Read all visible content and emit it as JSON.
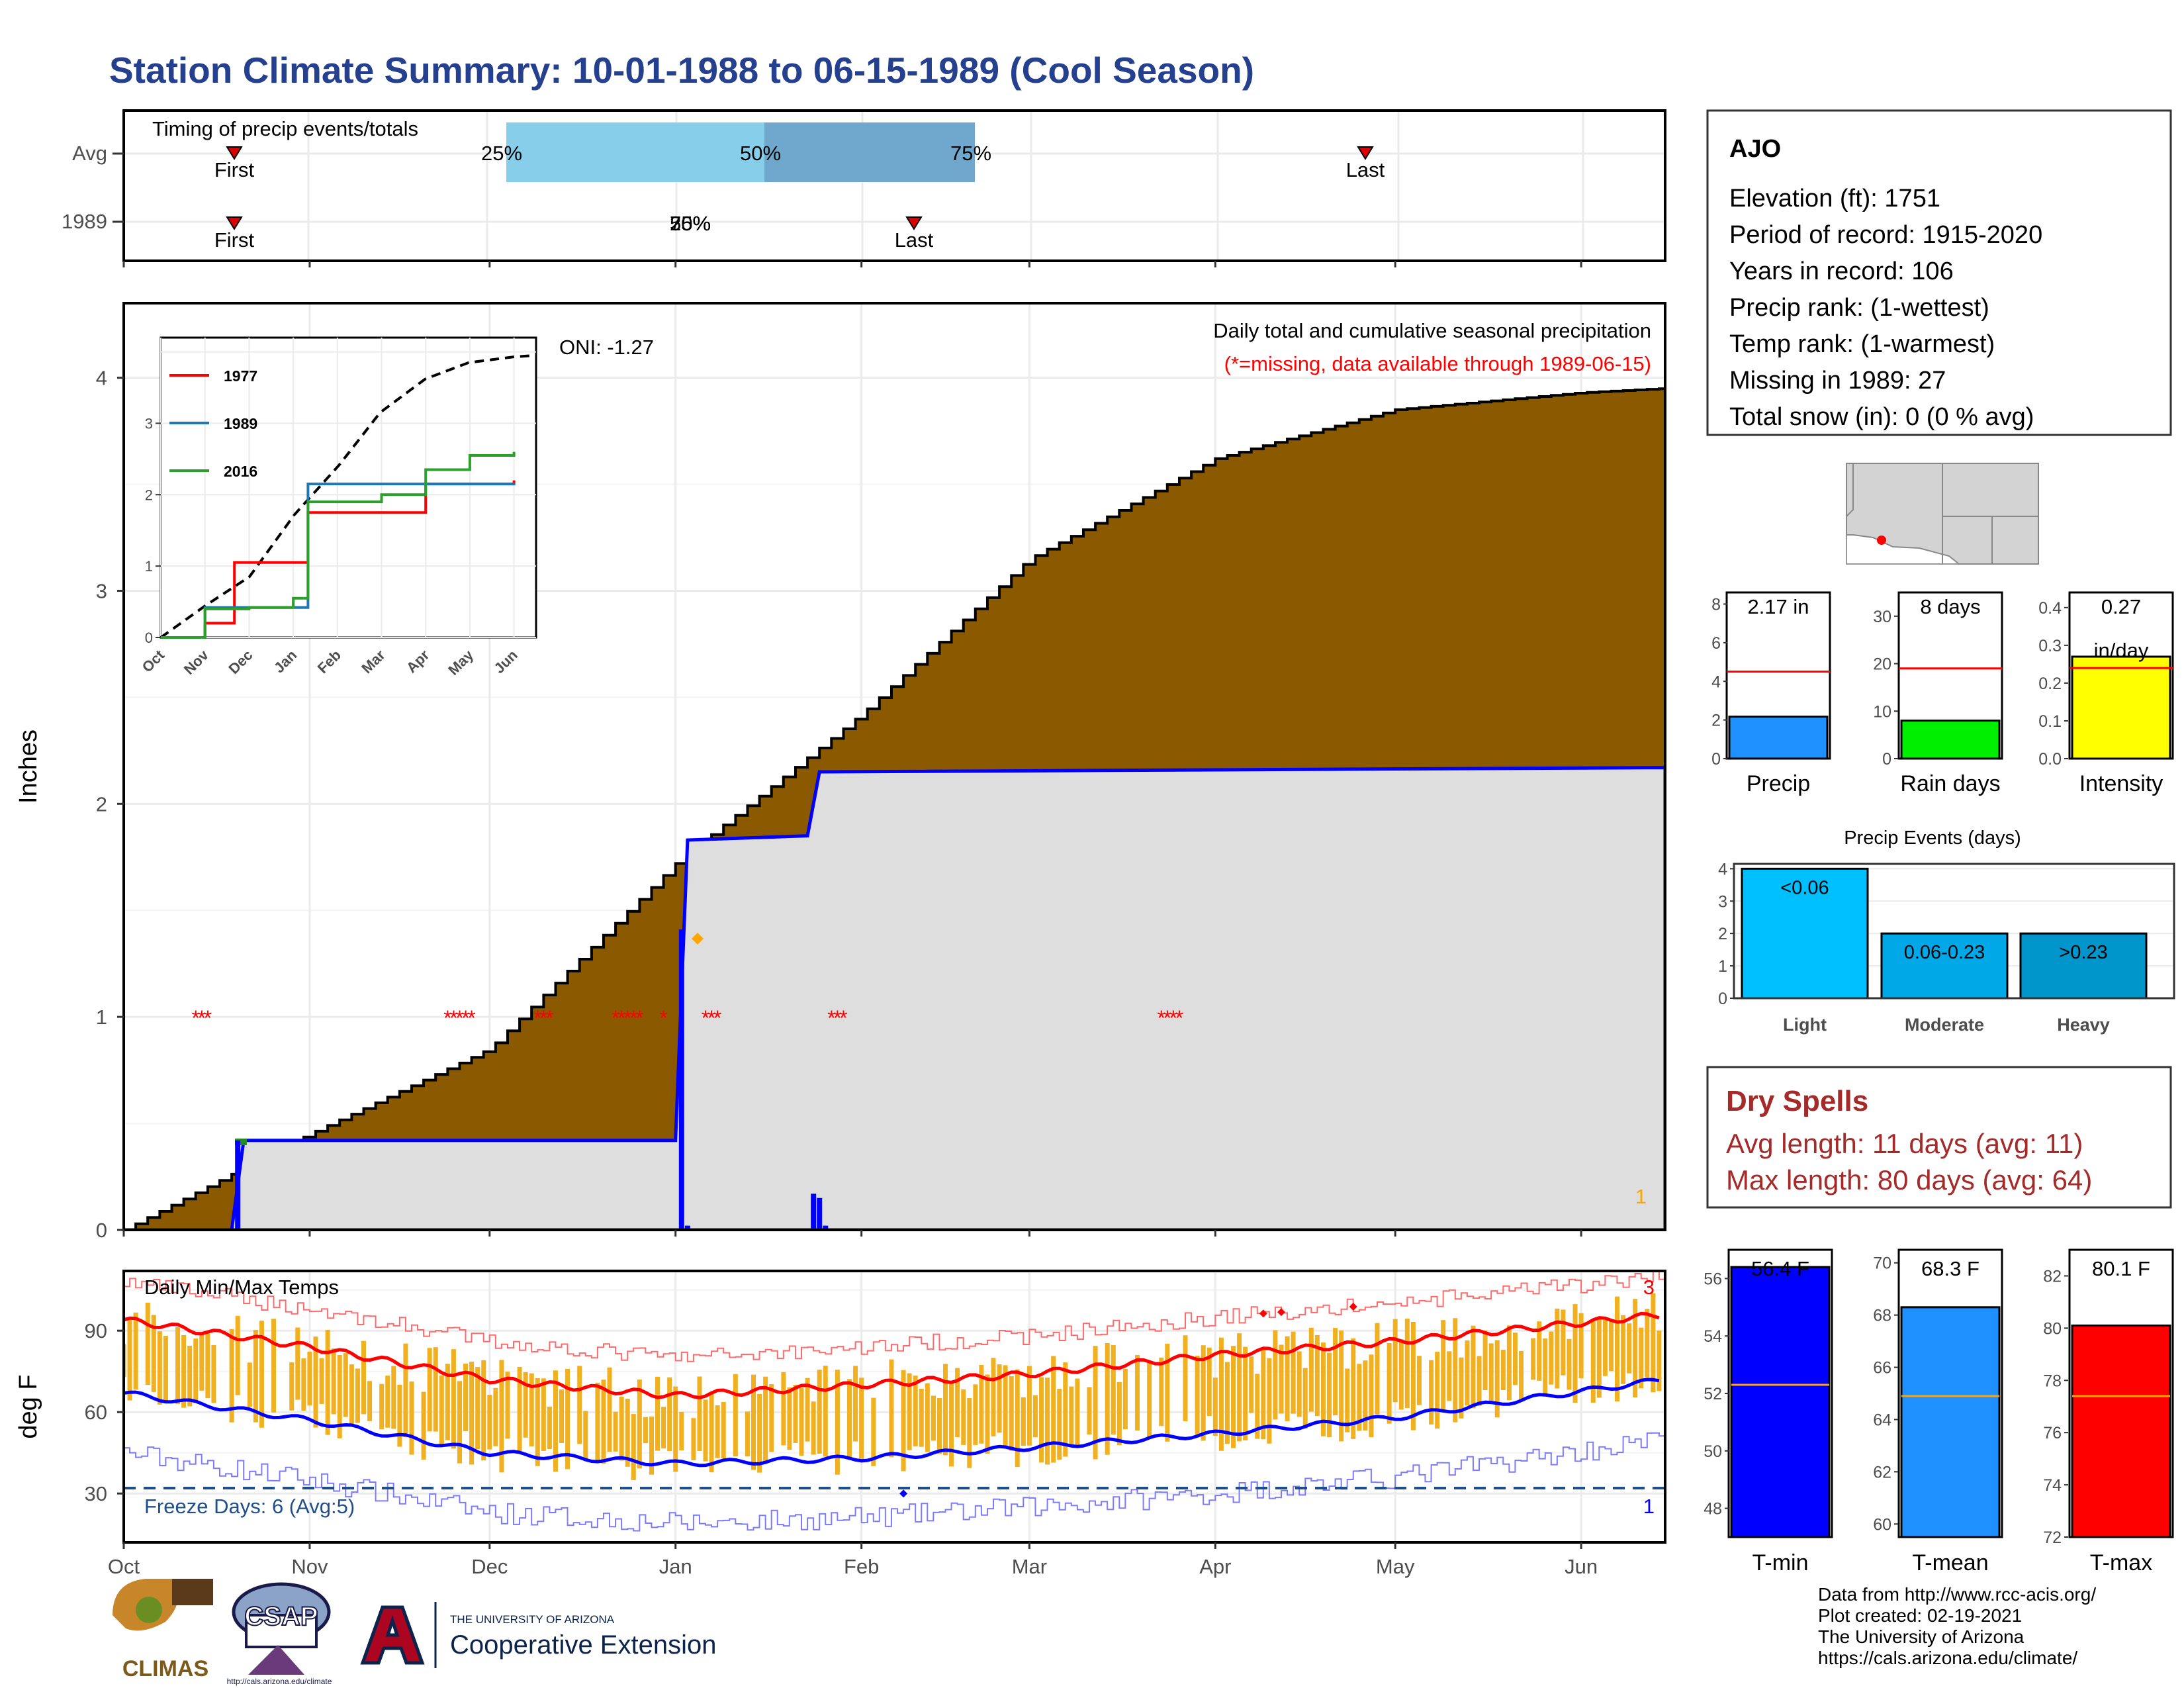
{
  "title": "Station Climate Summary: 10-01-1988 to 06-15-1989 (Cool Season)",
  "timing": {
    "label": "Timing of precip events/totals",
    "rows": [
      "Avg",
      "1989"
    ],
    "avg_first": "First",
    "avg_last": "Last",
    "p25": "25%",
    "p50": "50%",
    "p75": "75%",
    "y89_first": "First",
    "y89_last": "Last",
    "y89_overlap": "25%",
    "y89_overlap2": "50%",
    "y89_overlap3": "75%"
  },
  "station": {
    "name": "AJO",
    "lines": [
      "Elevation (ft): 1751",
      "Period of record: 1915-2020",
      "Years in record: 106",
      "Precip rank:  (1-wettest)",
      "Temp rank:  (1-warmest)",
      "Missing in 1989: 27",
      "Total snow (in): 0 (0 % avg)"
    ]
  },
  "precip_panel": {
    "ylabel": "Inches",
    "oni": "ONI: -1.27",
    "subtitle": "Daily total and cumulative seasonal precipitation",
    "missing_note": "(*=missing, data available through 1989-06-15)",
    "corner_count": "1",
    "months": [
      "Oct",
      "Nov",
      "Dec",
      "Jan",
      "Feb",
      "Mar",
      "Apr",
      "May",
      "Jun"
    ],
    "yticks": [
      "0",
      "1",
      "2",
      "3",
      "4"
    ]
  },
  "inset": {
    "legend": [
      "1977",
      "1989",
      "2016"
    ],
    "months": [
      "Oct",
      "Nov",
      "Dec",
      "Jan",
      "Feb",
      "Mar",
      "Apr",
      "May",
      "Jun"
    ],
    "yticks": [
      "0",
      "1",
      "2",
      "3"
    ]
  },
  "temp_panel": {
    "ylabel": "deg F",
    "label": "Daily Min/Max Temps",
    "freeze": "Freeze Days: 6 (Avg:5)",
    "top_count": "3",
    "bottom_count": "1",
    "yticks": [
      "30",
      "60",
      "90"
    ],
    "months": [
      "Oct",
      "Nov",
      "Dec",
      "Jan",
      "Feb",
      "Mar",
      "Apr",
      "May",
      "Jun"
    ]
  },
  "small_bars": {
    "precip": {
      "value": "2.17 in",
      "label": "Precip",
      "yticks": [
        "0",
        "2",
        "4",
        "6",
        "8"
      ],
      "color": "#1e90ff"
    },
    "rain_days": {
      "value": "8 days",
      "label": "Rain days",
      "yticks": [
        "0",
        "10",
        "20",
        "30"
      ],
      "color": "#00ee00"
    },
    "intensity": {
      "value": "0.27",
      "unit": "in/day",
      "label": "Intensity",
      "yticks": [
        "0.0",
        "0.1",
        "0.2",
        "0.3",
        "0.4"
      ],
      "color": "#ffff00"
    }
  },
  "events": {
    "title": "Precip Events (days)",
    "yticks": [
      "0",
      "1",
      "2",
      "3",
      "4"
    ],
    "bars": [
      {
        "label": "<0.06",
        "cat": "Light"
      },
      {
        "label": "0.06-0.23",
        "cat": "Moderate"
      },
      {
        "label": ">0.23",
        "cat": "Heavy"
      }
    ]
  },
  "dry": {
    "title": "Dry Spells",
    "avg": "Avg length: 11 days (avg: 11)",
    "max": "Max length: 80 days (avg: 64)"
  },
  "temps": {
    "tmin": {
      "value": "56.4 F",
      "label": "T-min",
      "yticks": [
        "48",
        "50",
        "52",
        "54",
        "56"
      ],
      "color": "#0000ff"
    },
    "tmean": {
      "value": "68.3 F",
      "label": "T-mean",
      "yticks": [
        "60",
        "62",
        "64",
        "66",
        "68",
        "70"
      ],
      "color": "#1e90ff"
    },
    "tmax": {
      "value": "80.1 F",
      "label": "T-max",
      "yticks": [
        "72",
        "74",
        "76",
        "78",
        "80",
        "82"
      ],
      "color": "#ff0000"
    }
  },
  "footer": {
    "lines": [
      "Data from http://www.rcc-acis.org/",
      "Plot created: 02-19-2021",
      "The University of Arizona",
      "https://cals.arizona.edu/climate/"
    ],
    "climas": "CLIMAS",
    "csap": "CSAP",
    "csap_url": "http://cals.arizona.edu/climate",
    "ua_small": "THE UNIVERSITY OF ARIZONA",
    "ua_big": "Cooperative Extension"
  },
  "chart_data": [
    {
      "type": "area",
      "title": "Daily total and cumulative seasonal precipitation",
      "ylabel": "Inches",
      "ylim": [
        0,
        4.35
      ],
      "x_range": [
        "1988-10-01",
        "1989-06-15"
      ],
      "series": [
        {
          "name": "average cumulative",
          "x": [
            "1988-10-01",
            "1988-11-01",
            "1988-12-01",
            "1989-01-01",
            "1989-02-01",
            "1989-03-01",
            "1989-04-01",
            "1989-05-01",
            "1989-06-01",
            "1989-06-15"
          ],
          "values": [
            0,
            0.45,
            0.85,
            1.72,
            2.42,
            3.15,
            3.62,
            3.85,
            3.93,
            3.95
          ]
        },
        {
          "name": "1989",
          "x": [
            "1988-10-01",
            "1988-10-19",
            "1988-10-21",
            "1989-01-01",
            "1989-01-03",
            "1989-01-23",
            "1989-01-25",
            "1989-06-15"
          ],
          "values": [
            0,
            0,
            0.42,
            0.42,
            1.83,
            1.85,
            2.15,
            2.17
          ]
        }
      ],
      "missing_days": [
        "1988-10-13",
        "1988-10-14",
        "1988-10-15",
        "1988-11-24",
        "1988-11-25",
        "1988-11-26",
        "1988-11-27",
        "1988-11-28",
        "1988-12-09",
        "1988-12-10",
        "1988-12-11",
        "1988-12-22",
        "1988-12-23",
        "1988-12-24",
        "1988-12-25",
        "1988-12-26",
        "1988-12-30",
        "1989-01-06",
        "1989-01-07",
        "1989-01-08",
        "1989-01-27",
        "1989-01-28",
        "1989-01-29",
        "1989-03-23",
        "1989-03-24",
        "1989-03-25",
        "1989-03-26"
      ]
    },
    {
      "type": "line",
      "title": "",
      "ylim": [
        0,
        4.2
      ],
      "legend": "top-left",
      "series": [
        {
          "name": "1977",
          "x": [
            "Oct",
            "Nov",
            "Nov 20",
            "Jan",
            "Jan 10",
            "Apr",
            "May",
            "Jun"
          ],
          "values": [
            0,
            0.2,
            1.05,
            1.05,
            1.75,
            2.15,
            2.15,
            2.2
          ]
        },
        {
          "name": "1989",
          "x": [
            "Oct",
            "Nov",
            "Jan",
            "Jan 10",
            "May",
            "Jun"
          ],
          "values": [
            0,
            0.42,
            0.42,
            2.15,
            2.15,
            2.17
          ]
        },
        {
          "name": "2016",
          "x": [
            "Oct",
            "Nov",
            "Dec",
            "Jan",
            "Jan 10",
            "Mar",
            "Apr",
            "May",
            "Jun"
          ],
          "values": [
            0,
            0.4,
            0.42,
            0.55,
            1.9,
            2.0,
            2.35,
            2.55,
            2.6
          ]
        }
      ]
    },
    {
      "type": "bar",
      "title": "Daily Min/Max Temps",
      "ylabel": "deg F",
      "ylim": [
        12,
        112
      ],
      "series": [
        {
          "name": "avg max",
          "x": [
            "Oct",
            "Nov",
            "Dec",
            "Jan",
            "Feb",
            "Mar",
            "Apr",
            "May",
            "Jun 15"
          ],
          "values": [
            94,
            84,
            72,
            66,
            70,
            74,
            81,
            86,
            96
          ]
        },
        {
          "name": "avg min",
          "x": [
            "Oct",
            "Nov",
            "Dec",
            "Jan",
            "Feb",
            "Mar",
            "Apr",
            "May",
            "Jun 15"
          ],
          "values": [
            67,
            57,
            45,
            41,
            43,
            47,
            52,
            58,
            72
          ]
        }
      ],
      "freeze_line": 32
    },
    {
      "type": "bar",
      "categories": [
        "Light",
        "Moderate",
        "Heavy"
      ],
      "values": [
        4,
        2,
        2
      ],
      "title": "Precip Events (days)",
      "ylim": [
        0,
        4
      ]
    },
    {
      "type": "bar",
      "categories": [
        "Precip",
        "Rain days",
        "Intensity"
      ],
      "values": [
        2.17,
        8,
        0.27
      ],
      "averages": [
        4.5,
        19,
        0.24
      ]
    },
    {
      "type": "bar",
      "categories": [
        "T-min",
        "T-mean",
        "T-max"
      ],
      "values": [
        56.4,
        68.3,
        80.1
      ],
      "averages": [
        52.3,
        64.9,
        77.4
      ]
    }
  ]
}
